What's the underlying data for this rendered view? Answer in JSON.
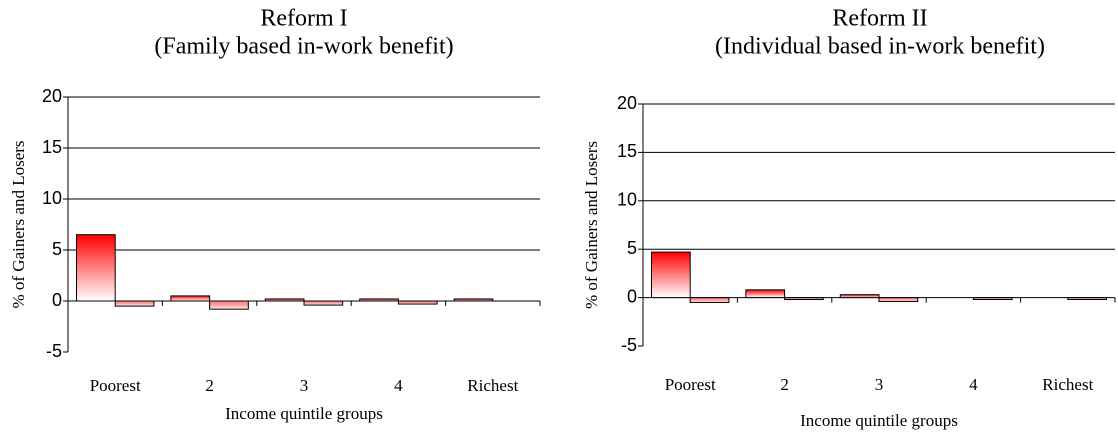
{
  "chart_data": [
    {
      "type": "bar",
      "title": "Reform I",
      "subtitle": "(Family based in-work benefit)",
      "y_label": "% of Gainers and Losers",
      "x_label": "Income quintile groups",
      "categories": [
        "Poorest",
        "2",
        "3",
        "4",
        "Richest"
      ],
      "series": [
        {
          "color": "#ff0000",
          "values": [
            6.5,
            0.5,
            0.2,
            0.2,
            0.2
          ]
        },
        {
          "color": "#ff0000",
          "values": [
            -0.5,
            -0.8,
            -0.4,
            -0.3,
            0
          ]
        }
      ],
      "ylim": [
        -5,
        20
      ],
      "yticks": [
        -5,
        0,
        5,
        10,
        15,
        20
      ],
      "grid": true
    },
    {
      "type": "bar",
      "title": "Reform II",
      "subtitle": "(Individual based in-work benefit)",
      "y_label": "% of Gainers and Losers",
      "x_label": "Income quintile groups",
      "categories": [
        "Poorest",
        "2",
        "3",
        "4",
        "Richest"
      ],
      "series": [
        {
          "color": "#ff0000",
          "values": [
            4.7,
            0.8,
            0.3,
            0,
            0
          ]
        },
        {
          "color": "#ff0000",
          "values": [
            -0.5,
            -0.2,
            -0.4,
            -0.2,
            -0.2
          ]
        }
      ],
      "ylim": [
        -5,
        20
      ],
      "yticks": [
        -5,
        0,
        5,
        10,
        15,
        20
      ],
      "grid": true
    }
  ]
}
